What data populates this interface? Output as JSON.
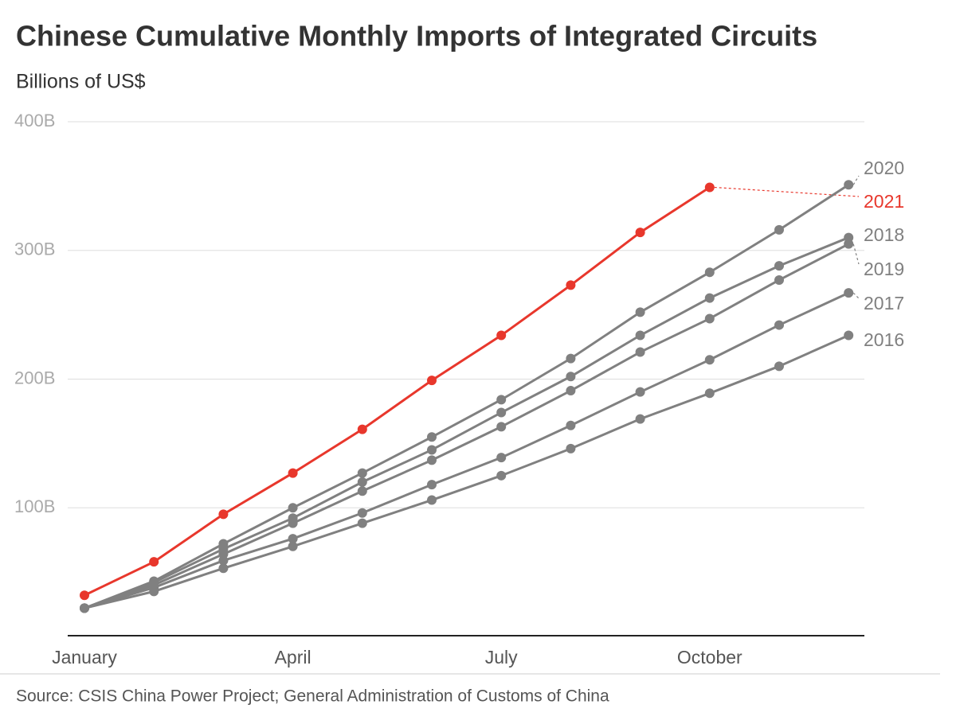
{
  "chart_data": {
    "type": "line",
    "title": "Chinese Cumulative Monthly Imports of Integrated Circuits",
    "subtitle": "Billions of US$",
    "source": "Source: CSIS China Power Project; General Administration of Customs of China",
    "categories": [
      "January",
      null,
      null,
      "April",
      null,
      null,
      "July",
      null,
      null,
      "October",
      null,
      null
    ],
    "ylim": [
      0,
      400
    ],
    "yticks": [
      {
        "value": 100,
        "label": "100B"
      },
      {
        "value": 200,
        "label": "200B"
      },
      {
        "value": 300,
        "label": "300B"
      },
      {
        "value": 400,
        "label": "400B"
      }
    ],
    "grid": true,
    "series": [
      {
        "name": "2020",
        "color": "#808080",
        "values": [
          22,
          43,
          72,
          100,
          127,
          155,
          184,
          216,
          252,
          283,
          316,
          351
        ]
      },
      {
        "name": "2021",
        "color": "#e8372c",
        "values": [
          32,
          58,
          95,
          127,
          161,
          199,
          234,
          273,
          314,
          349,
          null,
          null
        ]
      },
      {
        "name": "2018",
        "color": "#808080",
        "values": [
          22,
          42,
          68,
          92,
          120,
          145,
          174,
          202,
          234,
          263,
          288,
          310
        ]
      },
      {
        "name": "2019",
        "color": "#808080",
        "values": [
          22,
          40,
          64,
          88,
          113,
          137,
          163,
          191,
          221,
          247,
          277,
          305
        ]
      },
      {
        "name": "2017",
        "color": "#808080",
        "values": [
          22,
          38,
          59,
          76,
          96,
          118,
          139,
          164,
          190,
          215,
          242,
          267
        ]
      },
      {
        "name": "2016",
        "color": "#808080",
        "values": [
          22,
          35,
          53,
          70,
          88,
          106,
          125,
          146,
          169,
          189,
          210,
          234
        ]
      }
    ]
  }
}
